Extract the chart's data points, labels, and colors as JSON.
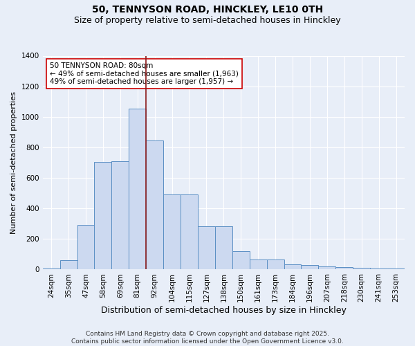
{
  "title": "50, TENNYSON ROAD, HINCKLEY, LE10 0TH",
  "subtitle": "Size of property relative to semi-detached houses in Hinckley",
  "xlabel": "Distribution of semi-detached houses by size in Hinckley",
  "ylabel": "Number of semi-detached properties",
  "bar_labels": [
    "24sqm",
    "35sqm",
    "47sqm",
    "58sqm",
    "69sqm",
    "81sqm",
    "92sqm",
    "104sqm",
    "115sqm",
    "127sqm",
    "138sqm",
    "150sqm",
    "161sqm",
    "173sqm",
    "184sqm",
    "196sqm",
    "207sqm",
    "218sqm",
    "230sqm",
    "241sqm",
    "253sqm"
  ],
  "bar_values": [
    8,
    62,
    290,
    705,
    710,
    1055,
    845,
    490,
    490,
    285,
    285,
    120,
    65,
    65,
    35,
    28,
    20,
    16,
    10,
    7,
    7
  ],
  "bar_color": "#ccd9f0",
  "bar_edge_color": "#5b8fc4",
  "vline_x_index": 5,
  "vline_color": "#8b1a1a",
  "annotation_line1": "50 TENNYSON ROAD: 80sqm",
  "annotation_line2": "← 49% of semi-detached houses are smaller (1,963)",
  "annotation_line3": "49% of semi-detached houses are larger (1,957) →",
  "annotation_box_facecolor": "#ffffff",
  "annotation_box_edgecolor": "#cc0000",
  "ylim": [
    0,
    1400
  ],
  "yticks": [
    0,
    200,
    400,
    600,
    800,
    1000,
    1200,
    1400
  ],
  "bg_color": "#e8eef8",
  "grid_color": "#ffffff",
  "footer_line1": "Contains HM Land Registry data © Crown copyright and database right 2025.",
  "footer_line2": "Contains public sector information licensed under the Open Government Licence v3.0.",
  "title_fontsize": 10,
  "subtitle_fontsize": 9,
  "ylabel_fontsize": 8,
  "xlabel_fontsize": 9,
  "tick_fontsize": 7.5,
  "annotation_fontsize": 7.5,
  "footer_fontsize": 6.5
}
